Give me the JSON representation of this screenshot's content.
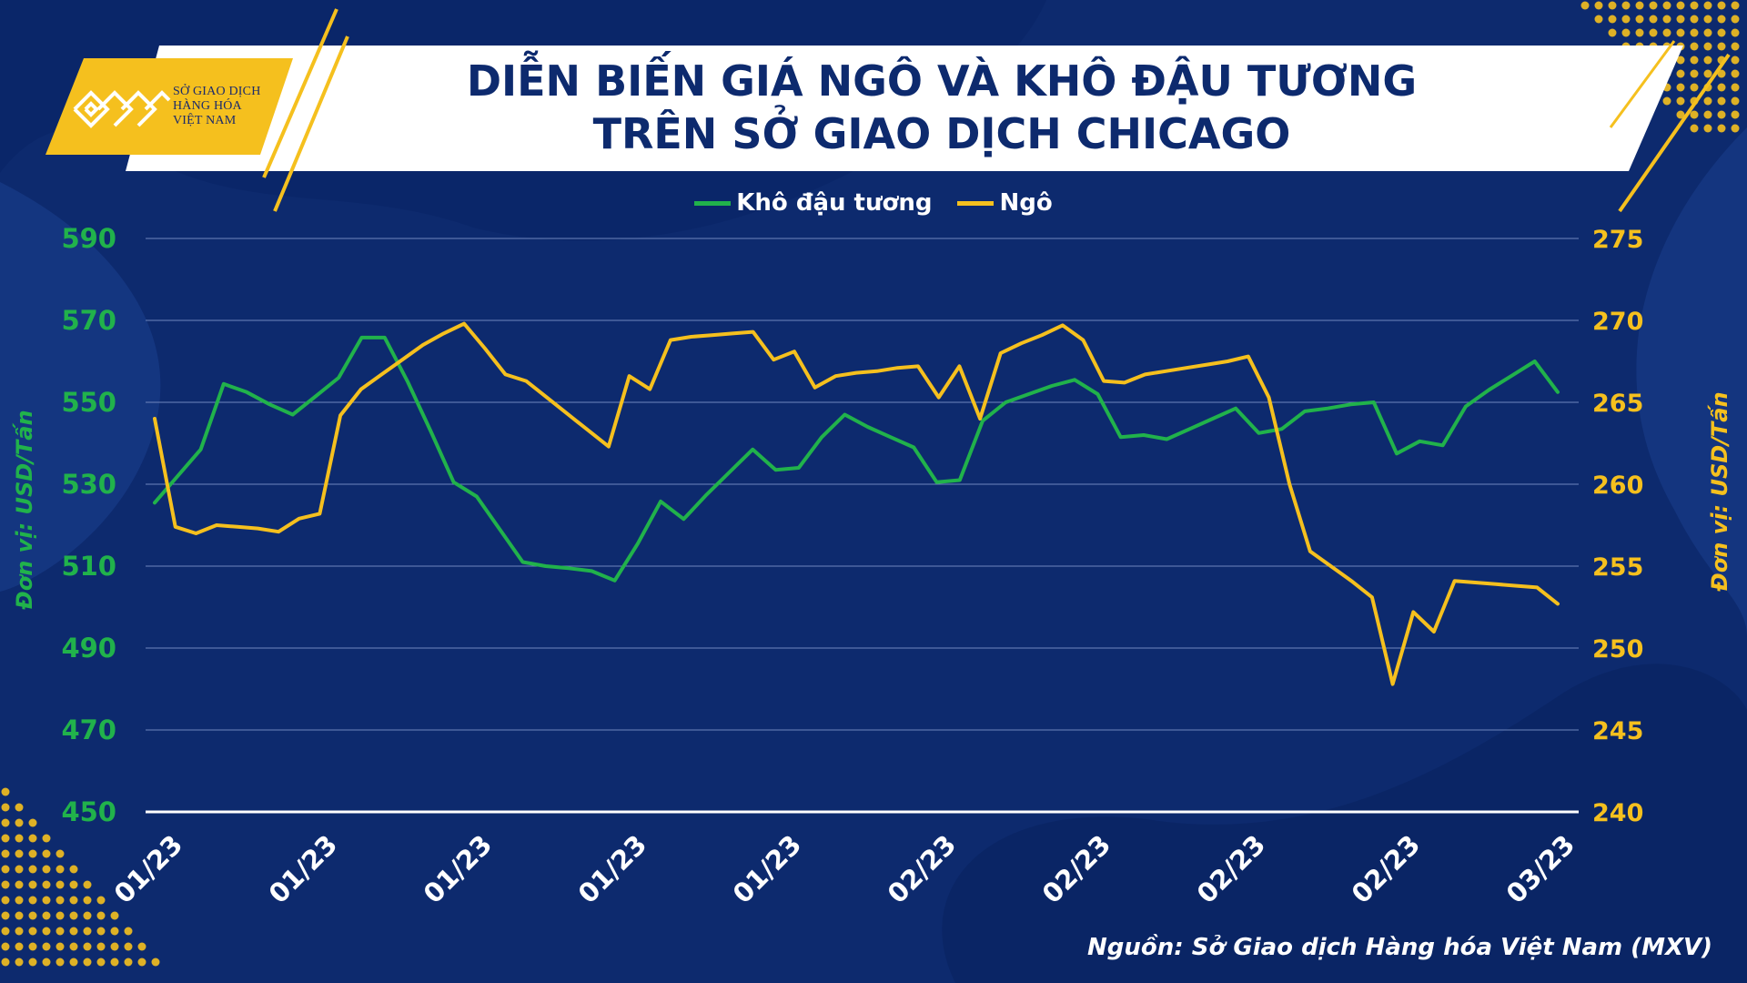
{
  "header": {
    "logo_lines": [
      "SỞ GIAO DỊCH",
      "HÀNG HÓA",
      "VIỆT NAM"
    ],
    "title_lines": [
      "DIỄN BIẾN GIÁ NGÔ VÀ  KHÔ ĐẬU TƯƠNG",
      "TRÊN SỞ GIAO DỊCH CHICAGO"
    ]
  },
  "source": "Nguồn: Sở Giao dịch Hàng hóa Việt Nam (MXV)",
  "colors": {
    "background": "#0d2a6e",
    "soybean_meal": "#21b24b",
    "corn": "#f5c01e",
    "banner": "#ffffff",
    "accent": "#f5c01e"
  },
  "chart_data": {
    "type": "line",
    "title": "DIỄN BIẾN GIÁ NGÔ VÀ  KHÔ ĐẬU TƯƠNG TRÊN SỞ GIAO DỊCH CHICAGO",
    "legend_position": "top-center",
    "grid": true,
    "left_axis": {
      "label": "Đơn vị: USD/Tấn",
      "range": [
        450,
        590
      ],
      "ticks": [
        "450",
        "470",
        "490",
        "510",
        "530",
        "550",
        "570",
        "590"
      ]
    },
    "right_axis": {
      "label": "Đơn vị: USD/Tấn",
      "range": [
        240,
        275
      ],
      "ticks": [
        "240",
        "245",
        "250",
        "255",
        "260",
        "265",
        "270",
        "275"
      ]
    },
    "x_tick_labels": [
      "01/23",
      "01/23",
      "01/23",
      "01/23",
      "01/23",
      "02/23",
      "02/23",
      "02/23",
      "02/23",
      "03/23"
    ],
    "series": [
      {
        "name": "Khô đậu tương",
        "axis": "left",
        "values": [
          525.5,
          532,
          538.5,
          554.5,
          552.5,
          549.5,
          547,
          551.5,
          556,
          565.8,
          565.8,
          555,
          543,
          530.5,
          527,
          519,
          511,
          510,
          509.5,
          508.8,
          506.5,
          515.5,
          525.8,
          521.5,
          527.5,
          533,
          538.5,
          533.5,
          534,
          541.5,
          547,
          544,
          541.5,
          539,
          530.5,
          531,
          545.5,
          550,
          552,
          554,
          555.5,
          552,
          541.5,
          542,
          541,
          543.5,
          546,
          548.5,
          542.5,
          543.5,
          547.8,
          548.5,
          549.5,
          550,
          537.5,
          540.5,
          539.5,
          549,
          553,
          556.5,
          560,
          552.5
        ]
      },
      {
        "name": "Ngô",
        "axis": "right",
        "values": [
          264,
          257.4,
          257,
          257.5,
          257.4,
          257.3,
          257.1,
          257.9,
          258.2,
          264.2,
          265.8,
          266.7,
          267.6,
          268.5,
          269.2,
          269.8,
          268.3,
          266.7,
          266.3,
          265.3,
          264.3,
          263.3,
          262.3,
          266.6,
          265.8,
          268.8,
          269,
          269.1,
          269.2,
          269.3,
          267.6,
          268.1,
          265.9,
          266.6,
          266.8,
          266.9,
          267.1,
          267.2,
          265.3,
          267.2,
          264,
          268,
          268.6,
          269.1,
          269.7,
          268.8,
          266.3,
          266.2,
          266.7,
          266.9,
          267.1,
          267.3,
          267.5,
          267.8,
          265.3,
          260,
          255.9,
          255,
          254.1,
          253.1,
          247.8,
          252.2,
          251,
          254.1,
          254,
          253.9,
          253.8,
          253.7,
          252.7
        ]
      }
    ]
  }
}
